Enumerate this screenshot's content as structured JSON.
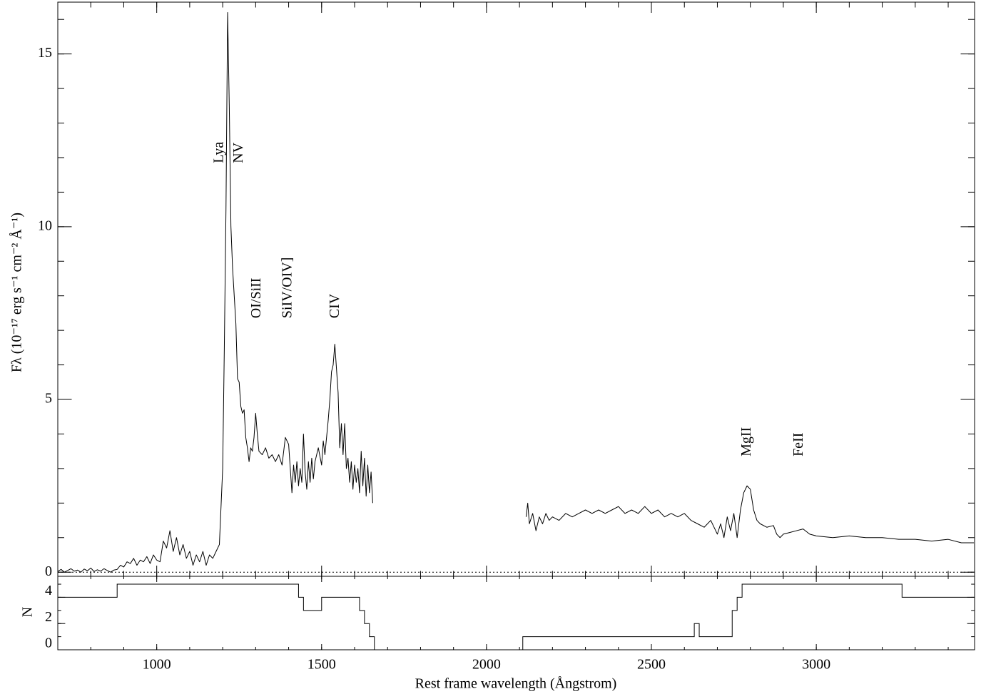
{
  "chart_data": [
    {
      "type": "line",
      "y_label": "Fλ (10⁻¹⁷ erg s⁻¹ cm⁻² Å⁻¹)",
      "xlim": [
        700,
        3480
      ],
      "xticks": [
        1000,
        1500,
        2000,
        2500,
        3000
      ],
      "ylim": [
        -0.12,
        16.5
      ],
      "yticks": [
        0,
        5,
        10,
        15
      ],
      "minor_ticks": true,
      "zero_line": true,
      "series": [
        {
          "color": "#000000",
          "x": [
            700,
            710,
            720,
            730,
            740,
            750,
            760,
            770,
            780,
            790,
            800,
            810,
            820,
            830,
            840,
            850,
            860,
            870,
            880,
            890,
            900,
            910,
            920,
            930,
            940,
            950,
            960,
            970,
            980,
            990,
            1000,
            1010,
            1020,
            1030,
            1040,
            1050,
            1060,
            1070,
            1080,
            1090,
            1100,
            1110,
            1120,
            1130,
            1140,
            1150,
            1160,
            1170,
            1180,
            1190,
            1200,
            1205,
            1210,
            1215,
            1220,
            1225,
            1230,
            1235,
            1240,
            1245,
            1250,
            1255,
            1260,
            1265,
            1270,
            1275,
            1280,
            1285,
            1290,
            1295,
            1300,
            1305,
            1310,
            1320,
            1330,
            1340,
            1350,
            1360,
            1370,
            1380,
            1390,
            1400,
            1405,
            1410,
            1415,
            1420,
            1425,
            1430,
            1435,
            1440,
            1445,
            1450,
            1455,
            1460,
            1465,
            1470,
            1475,
            1480,
            1490,
            1500,
            1505,
            1510,
            1520,
            1525,
            1530,
            1535,
            1540,
            1545,
            1550,
            1555,
            1560,
            1565,
            1570,
            1575,
            1580,
            1585,
            1590,
            1595,
            1600,
            1605,
            1610,
            1615,
            1620,
            1625,
            1630,
            1635,
            1640,
            1645,
            1650,
            1655,
            1800,
            2120,
            2125,
            2130,
            2140,
            2150,
            2160,
            2170,
            2180,
            2190,
            2200,
            2220,
            2240,
            2260,
            2280,
            2300,
            2320,
            2340,
            2360,
            2380,
            2400,
            2420,
            2440,
            2460,
            2480,
            2500,
            2520,
            2540,
            2560,
            2580,
            2600,
            2620,
            2640,
            2660,
            2680,
            2700,
            2710,
            2720,
            2730,
            2740,
            2750,
            2760,
            2770,
            2780,
            2790,
            2800,
            2810,
            2820,
            2830,
            2850,
            2870,
            2880,
            2890,
            2900,
            2920,
            2940,
            2960,
            2980,
            3000,
            3050,
            3100,
            3150,
            3200,
            3250,
            3300,
            3350,
            3400,
            3440,
            3478
          ],
          "values": [
            0.02,
            0.08,
            0.0,
            0.05,
            0.1,
            0.03,
            0.06,
            0.0,
            0.09,
            0.04,
            0.12,
            0.02,
            0.07,
            0.03,
            0.1,
            0.05,
            0.0,
            0.06,
            0.08,
            0.2,
            0.15,
            0.3,
            0.25,
            0.4,
            0.2,
            0.35,
            0.3,
            0.45,
            0.25,
            0.5,
            0.35,
            0.3,
            0.9,
            0.7,
            1.2,
            0.6,
            1.0,
            0.5,
            0.8,
            0.4,
            0.6,
            0.2,
            0.5,
            0.3,
            0.6,
            0.2,
            0.5,
            0.4,
            0.6,
            0.8,
            3.0,
            6.5,
            10.5,
            16.2,
            13.5,
            10.0,
            8.8,
            8.0,
            7.2,
            5.6,
            5.5,
            4.8,
            4.6,
            4.7,
            3.9,
            3.6,
            3.2,
            3.6,
            3.5,
            3.9,
            4.6,
            4.0,
            3.5,
            3.4,
            3.6,
            3.3,
            3.4,
            3.2,
            3.4,
            3.1,
            3.9,
            3.7,
            3.0,
            2.3,
            3.1,
            2.6,
            3.2,
            2.5,
            3.0,
            2.6,
            4.0,
            2.9,
            2.4,
            3.2,
            2.6,
            3.3,
            2.7,
            3.2,
            3.6,
            3.1,
            3.8,
            3.4,
            4.4,
            5.0,
            5.8,
            6.0,
            6.6,
            5.9,
            5.2,
            3.6,
            4.3,
            3.4,
            4.3,
            3.0,
            3.3,
            2.6,
            3.2,
            2.4,
            3.1,
            2.6,
            3.0,
            2.3,
            3.5,
            2.5,
            3.3,
            2.2,
            3.1,
            2.3,
            2.9,
            2.0,
            null,
            1.6,
            2.0,
            1.4,
            1.7,
            1.2,
            1.6,
            1.4,
            1.7,
            1.5,
            1.6,
            1.5,
            1.7,
            1.6,
            1.7,
            1.8,
            1.7,
            1.8,
            1.7,
            1.8,
            1.9,
            1.7,
            1.8,
            1.7,
            1.9,
            1.7,
            1.8,
            1.6,
            1.7,
            1.6,
            1.7,
            1.5,
            1.4,
            1.3,
            1.5,
            1.1,
            1.4,
            1.0,
            1.6,
            1.2,
            1.7,
            1.0,
            1.8,
            2.3,
            2.5,
            2.4,
            1.8,
            1.5,
            1.4,
            1.3,
            1.35,
            1.1,
            1.0,
            1.1,
            1.15,
            1.2,
            1.25,
            1.1,
            1.05,
            1.0,
            1.05,
            1.0,
            1.0,
            0.95,
            0.95,
            0.9,
            0.95,
            0.85,
            0.85
          ]
        }
      ],
      "annotations": [
        {
          "text": "Lya",
          "x": 1191,
          "y": 11.84
        },
        {
          "text": "NV",
          "x": 1250,
          "y": 11.84
        },
        {
          "text": "OI/SiII",
          "x": 1304,
          "y": 7.35
        },
        {
          "text": "SiIV/OIV]",
          "x": 1399,
          "y": 7.35
        },
        {
          "text": "CIV",
          "x": 1542,
          "y": 7.35
        },
        {
          "text": "MgII",
          "x": 2791,
          "y": 3.35
        },
        {
          "text": "FeII",
          "x": 2949,
          "y": 3.35
        }
      ]
    },
    {
      "type": "step",
      "x_label": "Rest frame wavelength (Ångstrom)",
      "y_label": "N",
      "xlim": [
        700,
        3480
      ],
      "xticks": [
        1000,
        1500,
        2000,
        2500,
        3000
      ],
      "ylim": [
        0,
        5.6
      ],
      "yticks": [
        0,
        2,
        4
      ],
      "minor_ticks": true,
      "series": [
        {
          "color": "#000000",
          "x": [
            700,
            880,
            1430,
            1445,
            1500,
            1615,
            1630,
            1645,
            1660,
            2110,
            2630,
            2645,
            2745,
            2760,
            2775,
            3260
          ],
          "values": [
            4,
            5,
            4,
            3,
            4,
            3,
            2,
            1,
            0,
            1,
            2,
            1,
            3,
            4,
            5,
            4
          ]
        }
      ]
    }
  ]
}
